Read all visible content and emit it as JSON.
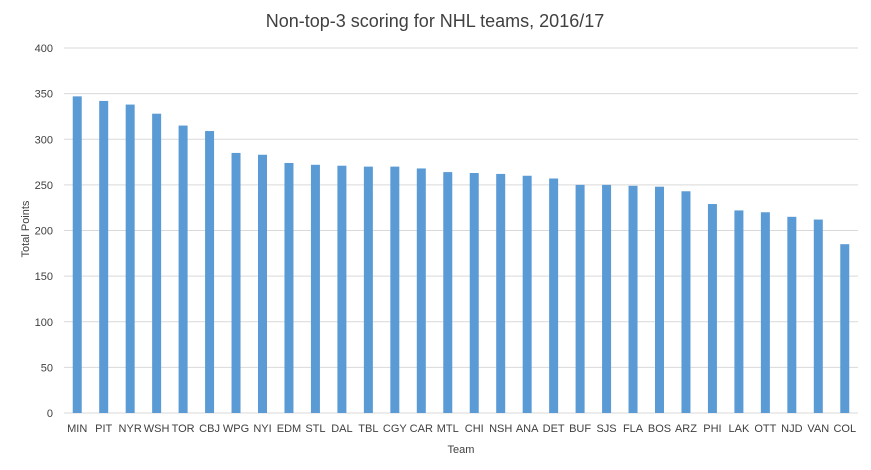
{
  "chart_data": {
    "type": "bar",
    "title": "Non-top-3 scoring for NHL teams, 2016/17",
    "xlabel": "Team",
    "ylabel": "Total Points",
    "ylim": [
      0,
      400
    ],
    "yticks": [
      0,
      50,
      100,
      150,
      200,
      250,
      300,
      350,
      400
    ],
    "grid": true,
    "legend": "none",
    "bar_color": "#5b9bd5",
    "categories": [
      "MIN",
      "PIT",
      "NYR",
      "WSH",
      "TOR",
      "CBJ",
      "WPG",
      "NYI",
      "EDM",
      "STL",
      "DAL",
      "TBL",
      "CGY",
      "CAR",
      "MTL",
      "CHI",
      "NSH",
      "ANA",
      "DET",
      "BUF",
      "SJS",
      "FLA",
      "BOS",
      "ARZ",
      "PHI",
      "LAK",
      "OTT",
      "NJD",
      "VAN",
      "COL"
    ],
    "values": [
      347,
      342,
      338,
      328,
      315,
      309,
      285,
      283,
      274,
      272,
      271,
      270,
      270,
      268,
      264,
      263,
      262,
      260,
      257,
      250,
      250,
      249,
      248,
      243,
      229,
      222,
      220,
      215,
      212,
      185
    ]
  }
}
